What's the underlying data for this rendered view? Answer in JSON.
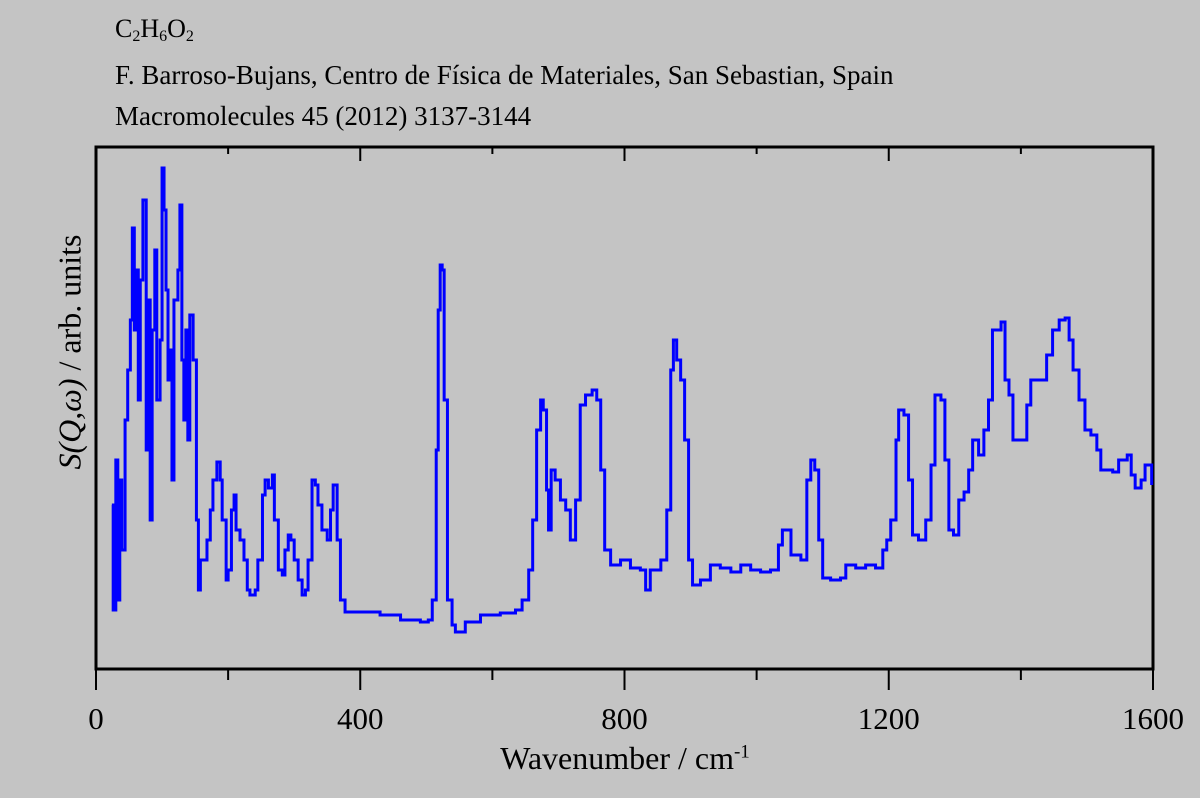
{
  "title": {
    "formula": {
      "c": "C",
      "c_n": "2",
      "h": "H",
      "h_n": "6",
      "o": "O",
      "o_n": "2"
    },
    "author_line": "F. Barroso-Bujans, Centro de Física de Materiales, San Sebastian, Spain",
    "reference_line": "Macromolecules 45 (2012) 3137-3144"
  },
  "chart_data": {
    "type": "line",
    "title": "C2H6O2",
    "xlabel": "Wavenumber / cm-1",
    "xlabel_parts": {
      "main": "Wavenumber / cm",
      "sup": "-1"
    },
    "ylabel": "S(Q,ω) / arb. units",
    "ylabel_parts": {
      "s": "S",
      "open": "(",
      "q": "Q",
      "comma": ",",
      "omega": "ω",
      "close": ")",
      "rest": " / arb. units"
    },
    "xlim": [
      0,
      1600
    ],
    "ylim": [
      0,
      522
    ],
    "xticks_major": [
      0,
      400,
      800,
      1200,
      1600
    ],
    "xtick_labels": [
      "0",
      "400",
      "800",
      "1200",
      "1600"
    ],
    "xticks_minor": [
      200,
      600,
      1000,
      1400
    ],
    "grid": false,
    "series": [
      {
        "name": "C2H6O2",
        "color": "#0000ff",
        "points": [
          [
            24,
            164
          ],
          [
            26,
            59
          ],
          [
            30,
            209
          ],
          [
            33,
            69
          ],
          [
            36,
            189
          ],
          [
            39,
            119
          ],
          [
            44,
            249
          ],
          [
            48,
            299
          ],
          [
            52,
            349
          ],
          [
            55,
            441
          ],
          [
            58,
            339
          ],
          [
            61,
            399
          ],
          [
            64,
            269
          ],
          [
            67,
            389
          ],
          [
            71,
            469
          ],
          [
            76,
            219
          ],
          [
            79,
            369
          ],
          [
            82,
            149
          ],
          [
            85,
            339
          ],
          [
            89,
            419
          ],
          [
            92,
            269
          ],
          [
            97,
            329
          ],
          [
            100,
            501
          ],
          [
            103,
            459
          ],
          [
            106,
            379
          ],
          [
            109,
            289
          ],
          [
            112,
            319
          ],
          [
            115,
            189
          ],
          [
            118,
            369
          ],
          [
            124,
            399
          ],
          [
            127,
            464
          ],
          [
            130,
            309
          ],
          [
            133,
            249
          ],
          [
            136,
            339
          ],
          [
            139,
            229
          ],
          [
            142,
            354
          ],
          [
            147,
            309
          ],
          [
            152,
            149
          ],
          [
            155,
            79
          ],
          [
            158,
            109
          ],
          [
            164,
            109
          ],
          [
            168,
            129
          ],
          [
            173,
            159
          ],
          [
            177,
            189
          ],
          [
            183,
            207
          ],
          [
            188,
            189
          ],
          [
            191,
            149
          ],
          [
            197,
            89
          ],
          [
            200,
            99
          ],
          [
            205,
            159
          ],
          [
            209,
            174
          ],
          [
            212,
            139
          ],
          [
            218,
            129
          ],
          [
            224,
            109
          ],
          [
            229,
            79
          ],
          [
            233,
            74
          ],
          [
            241,
            79
          ],
          [
            245,
            109
          ],
          [
            252,
            174
          ],
          [
            256,
            189
          ],
          [
            261,
            181
          ],
          [
            267,
            194
          ],
          [
            270,
            149
          ],
          [
            276,
            99
          ],
          [
            282,
            94
          ],
          [
            286,
            119
          ],
          [
            291,
            134
          ],
          [
            295,
            129
          ],
          [
            300,
            109
          ],
          [
            306,
            89
          ],
          [
            312,
            74
          ],
          [
            317,
            79
          ],
          [
            321,
            109
          ],
          [
            327,
            189
          ],
          [
            332,
            184
          ],
          [
            336,
            164
          ],
          [
            342,
            139
          ],
          [
            350,
            129
          ],
          [
            355,
            159
          ],
          [
            359,
            184
          ],
          [
            365,
            129
          ],
          [
            370,
            69
          ],
          [
            377,
            57
          ],
          [
            400,
            57
          ],
          [
            430,
            54
          ],
          [
            461,
            49
          ],
          [
            491,
            47
          ],
          [
            503,
            49
          ],
          [
            509,
            69
          ],
          [
            515,
            219
          ],
          [
            518,
            359
          ],
          [
            521,
            404
          ],
          [
            524,
            399
          ],
          [
            527,
            269
          ],
          [
            532,
            69
          ],
          [
            539,
            44
          ],
          [
            544,
            37
          ],
          [
            559,
            47
          ],
          [
            582,
            54
          ],
          [
            612,
            56
          ],
          [
            635,
            59
          ],
          [
            645,
            69
          ],
          [
            655,
            99
          ],
          [
            661,
            149
          ],
          [
            667,
            239
          ],
          [
            673,
            269
          ],
          [
            677,
            259
          ],
          [
            682,
            179
          ],
          [
            685,
            139
          ],
          [
            689,
            199
          ],
          [
            695,
            189
          ],
          [
            703,
            169
          ],
          [
            711,
            159
          ],
          [
            718,
            129
          ],
          [
            726,
            169
          ],
          [
            733,
            264
          ],
          [
            741,
            274
          ],
          [
            751,
            279
          ],
          [
            758,
            269
          ],
          [
            764,
            199
          ],
          [
            770,
            119
          ],
          [
            779,
            104
          ],
          [
            794,
            109
          ],
          [
            809,
            101
          ],
          [
            824,
            99
          ],
          [
            832,
            79
          ],
          [
            839,
            99
          ],
          [
            855,
            109
          ],
          [
            864,
            159
          ],
          [
            870,
            299
          ],
          [
            874,
            329
          ],
          [
            879,
            309
          ],
          [
            885,
            289
          ],
          [
            891,
            229
          ],
          [
            897,
            109
          ],
          [
            903,
            84
          ],
          [
            915,
            89
          ],
          [
            930,
            104
          ],
          [
            945,
            101
          ],
          [
            961,
            97
          ],
          [
            976,
            104
          ],
          [
            991,
            99
          ],
          [
            1006,
            97
          ],
          [
            1021,
            99
          ],
          [
            1033,
            124
          ],
          [
            1039,
            139
          ],
          [
            1045,
            139
          ],
          [
            1052,
            114
          ],
          [
            1067,
            109
          ],
          [
            1076,
            189
          ],
          [
            1082,
            209
          ],
          [
            1088,
            199
          ],
          [
            1094,
            129
          ],
          [
            1100,
            91
          ],
          [
            1112,
            89
          ],
          [
            1127,
            91
          ],
          [
            1135,
            104
          ],
          [
            1150,
            101
          ],
          [
            1165,
            104
          ],
          [
            1180,
            101
          ],
          [
            1191,
            119
          ],
          [
            1197,
            129
          ],
          [
            1203,
            149
          ],
          [
            1211,
            229
          ],
          [
            1215,
            259
          ],
          [
            1223,
            254
          ],
          [
            1230,
            189
          ],
          [
            1236,
            134
          ],
          [
            1245,
            129
          ],
          [
            1256,
            149
          ],
          [
            1264,
            204
          ],
          [
            1270,
            274
          ],
          [
            1279,
            269
          ],
          [
            1285,
            209
          ],
          [
            1291,
            139
          ],
          [
            1298,
            134
          ],
          [
            1306,
            169
          ],
          [
            1314,
            177
          ],
          [
            1321,
            199
          ],
          [
            1327,
            229
          ],
          [
            1336,
            214
          ],
          [
            1344,
            239
          ],
          [
            1351,
            269
          ],
          [
            1357,
            339
          ],
          [
            1370,
            347
          ],
          [
            1376,
            289
          ],
          [
            1382,
            274
          ],
          [
            1388,
            229
          ],
          [
            1400,
            229
          ],
          [
            1409,
            264
          ],
          [
            1415,
            289
          ],
          [
            1430,
            289
          ],
          [
            1439,
            314
          ],
          [
            1448,
            339
          ],
          [
            1458,
            349
          ],
          [
            1467,
            351
          ],
          [
            1473,
            329
          ],
          [
            1479,
            299
          ],
          [
            1488,
            269
          ],
          [
            1497,
            239
          ],
          [
            1506,
            234
          ],
          [
            1515,
            219
          ],
          [
            1521,
            199
          ],
          [
            1539,
            197
          ],
          [
            1548,
            209
          ],
          [
            1561,
            214
          ],
          [
            1567,
            194
          ],
          [
            1573,
            181
          ],
          [
            1582,
            189
          ],
          [
            1588,
            204
          ],
          [
            1594,
            204
          ],
          [
            1598,
            184
          ]
        ]
      }
    ]
  }
}
